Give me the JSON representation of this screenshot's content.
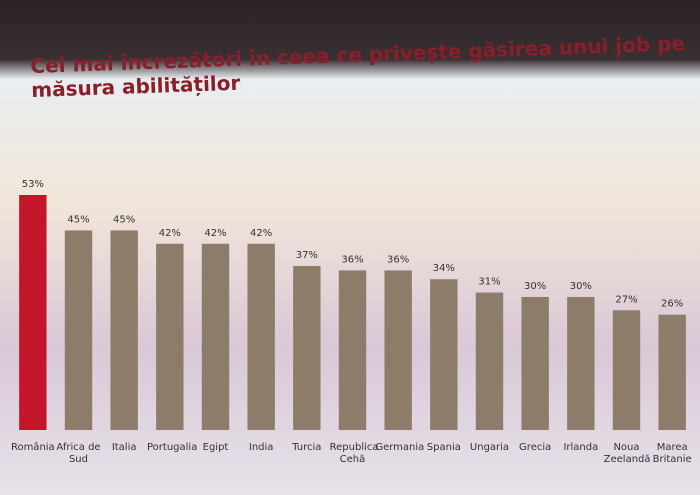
{
  "chart_data": {
    "type": "bar",
    "title": "Cei mai încrezători în ceea ce privește găsirea unui job pe măsura abilităților",
    "categories": [
      "România",
      "Africa de Sud",
      "Italia",
      "Portugalia",
      "Egipt",
      "India",
      "Turcia",
      "Republica Cehă",
      "Germania",
      "Spania",
      "Ungaria",
      "Grecia",
      "Irlanda",
      "Noua Zeelandă",
      "Marea Britanie"
    ],
    "values": [
      53,
      45,
      45,
      42,
      42,
      42,
      37,
      36,
      36,
      34,
      31,
      30,
      30,
      27,
      26
    ],
    "value_labels": [
      "53%",
      "45%",
      "45%",
      "42%",
      "42%",
      "42%",
      "37%",
      "36%",
      "36%",
      "34%",
      "31%",
      "30%",
      "30%",
      "27%",
      "26%"
    ],
    "colors": [
      "#c4162a",
      "#8e7c6a",
      "#8e7c6a",
      "#8e7c6a",
      "#8e7c6a",
      "#8e7c6a",
      "#8e7c6a",
      "#8e7c6a",
      "#8e7c6a",
      "#8e7c6a",
      "#8e7c6a",
      "#8e7c6a",
      "#8e7c6a",
      "#8e7c6a",
      "#8e7c6a"
    ]
  }
}
